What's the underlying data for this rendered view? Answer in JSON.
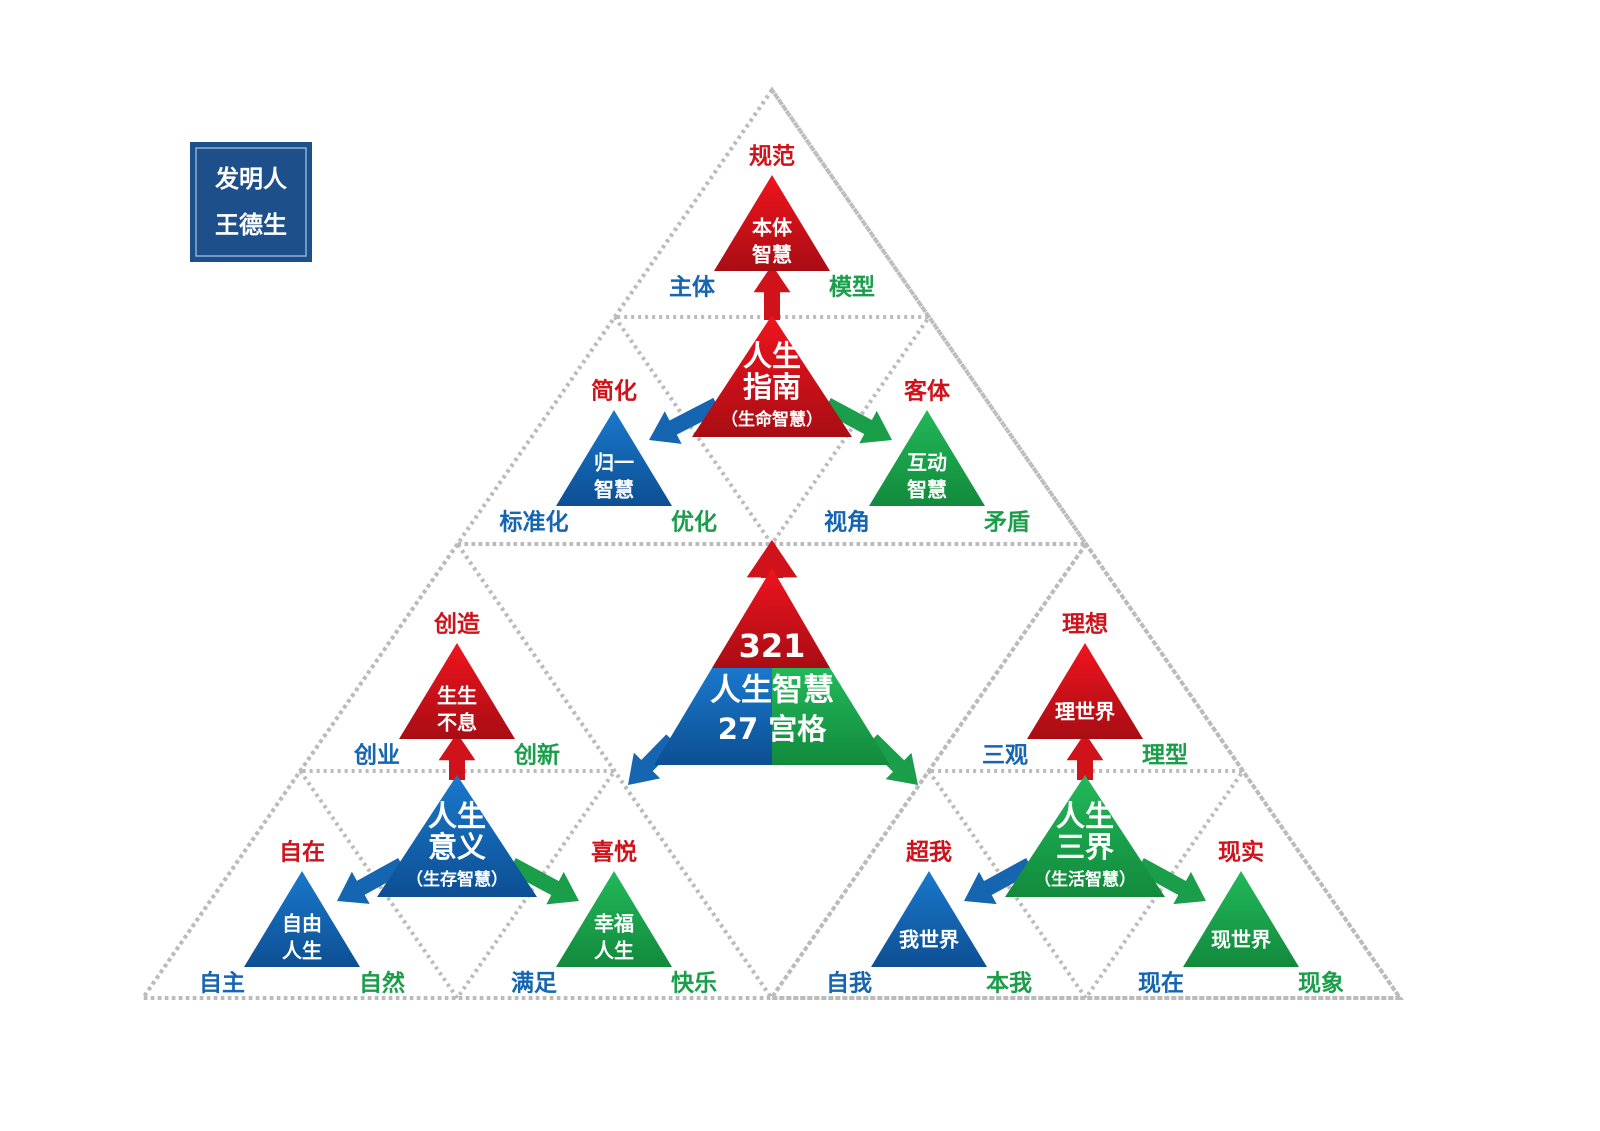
{
  "stamp": {
    "lines": [
      "发明人",
      "王德生"
    ]
  },
  "center": {
    "lines": [
      "321",
      "人生智慧",
      "27 宫格"
    ]
  },
  "groups": [
    {
      "hub": {
        "lines": [
          "人生",
          "指南"
        ],
        "note": "（生命智慧）"
      },
      "satellites": [
        {
          "label": "规范",
          "lines": [
            "本体",
            "智慧"
          ],
          "left": "主体",
          "right": "模型"
        },
        {
          "label": "简化",
          "lines": [
            "归一",
            "智慧"
          ],
          "left": "标准化",
          "right": "优化"
        },
        {
          "label": "客体",
          "lines": [
            "互动",
            "智慧"
          ],
          "left": "视角",
          "right": "矛盾"
        }
      ]
    },
    {
      "hub": {
        "lines": [
          "人生",
          "意义"
        ],
        "note": "（生存智慧）"
      },
      "satellites": [
        {
          "label": "创造",
          "lines": [
            "生生",
            "不息"
          ],
          "left": "创业",
          "right": "创新"
        },
        {
          "label": "自在",
          "lines": [
            "自由",
            "人生"
          ],
          "left": "自主",
          "right": "自然"
        },
        {
          "label": "喜悦",
          "lines": [
            "幸福",
            "人生"
          ],
          "left": "满足",
          "right": "快乐"
        }
      ]
    },
    {
      "hub": {
        "lines": [
          "人生",
          "三界"
        ],
        "note": "（生活智慧）"
      },
      "satellites": [
        {
          "label": "理想",
          "lines": [
            "理世界"
          ],
          "left": "三观",
          "right": "理型"
        },
        {
          "label": "超我",
          "lines": [
            "我世界"
          ],
          "left": "自我",
          "right": "本我"
        },
        {
          "label": "现实",
          "lines": [
            "现世界"
          ],
          "left": "现在",
          "right": "现象"
        }
      ]
    }
  ]
}
